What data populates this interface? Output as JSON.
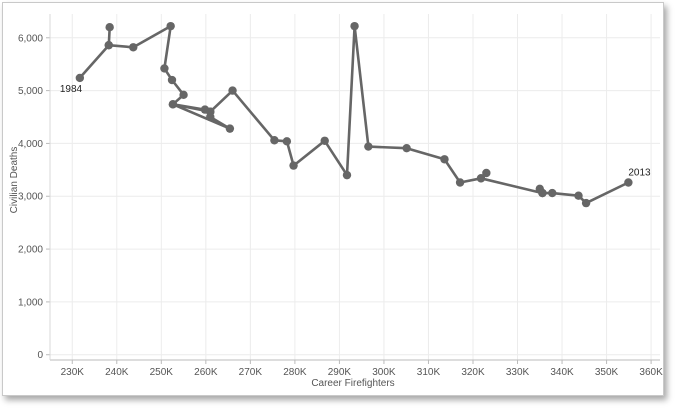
{
  "chart_data": {
    "type": "line",
    "xlabel": "Career Firefighters",
    "ylabel": "Civilian Deaths",
    "xlim": [
      225000,
      362000
    ],
    "ylim": [
      -100,
      6450
    ],
    "x_ticks": [
      230000,
      240000,
      250000,
      260000,
      270000,
      280000,
      290000,
      300000,
      310000,
      320000,
      330000,
      340000,
      350000,
      360000
    ],
    "x_tick_labels": [
      "230K",
      "240K",
      "250K",
      "260K",
      "270K",
      "280K",
      "290K",
      "300K",
      "310K",
      "320K",
      "330K",
      "340K",
      "350K",
      "360K"
    ],
    "y_ticks": [
      0,
      1000,
      2000,
      3000,
      4000,
      5000,
      6000
    ],
    "y_tick_labels": [
      "0",
      "1,000",
      "2,000",
      "3,000",
      "4,000",
      "5,000",
      "6,000"
    ],
    "grid": true,
    "color": "#666666",
    "series": [
      {
        "points": [
          {
            "x": 231700,
            "y": 5240
          },
          {
            "x": 238200,
            "y": 5860
          },
          {
            "x": 238400,
            "y": 6200
          },
          {
            "x": 238200,
            "y": 5860
          },
          {
            "x": 243700,
            "y": 5820
          },
          {
            "x": 252100,
            "y": 6220
          },
          {
            "x": 250700,
            "y": 5420
          },
          {
            "x": 252400,
            "y": 5200
          },
          {
            "x": 255000,
            "y": 4920
          },
          {
            "x": 252600,
            "y": 4740
          },
          {
            "x": 259800,
            "y": 4640
          },
          {
            "x": 261000,
            "y": 4600
          },
          {
            "x": 261000,
            "y": 4500
          },
          {
            "x": 265400,
            "y": 4280
          },
          {
            "x": 252600,
            "y": 4740
          },
          {
            "x": 261000,
            "y": 4600
          },
          {
            "x": 266000,
            "y": 5000
          },
          {
            "x": 275400,
            "y": 4060
          },
          {
            "x": 278200,
            "y": 4040
          },
          {
            "x": 279700,
            "y": 3580
          },
          {
            "x": 286700,
            "y": 4050
          },
          {
            "x": 291700,
            "y": 3400
          },
          {
            "x": 293400,
            "y": 6220
          },
          {
            "x": 296500,
            "y": 3940
          },
          {
            "x": 305100,
            "y": 3910
          },
          {
            "x": 313600,
            "y": 3700
          },
          {
            "x": 317100,
            "y": 3260
          },
          {
            "x": 321800,
            "y": 3340
          },
          {
            "x": 323000,
            "y": 3440
          },
          {
            "x": 321800,
            "y": 3340
          },
          {
            "x": 335600,
            "y": 3060
          },
          {
            "x": 335000,
            "y": 3140
          },
          {
            "x": 335600,
            "y": 3060
          },
          {
            "x": 337800,
            "y": 3060
          },
          {
            "x": 343700,
            "y": 3010
          },
          {
            "x": 345400,
            "y": 2870
          },
          {
            "x": 354900,
            "y": 3260
          }
        ]
      }
    ],
    "annotations": [
      {
        "text": "1984",
        "x": 231700,
        "y": 5240,
        "anchor": "below-left"
      },
      {
        "text": "2013",
        "x": 354900,
        "y": 3260,
        "anchor": "above-right"
      }
    ]
  }
}
